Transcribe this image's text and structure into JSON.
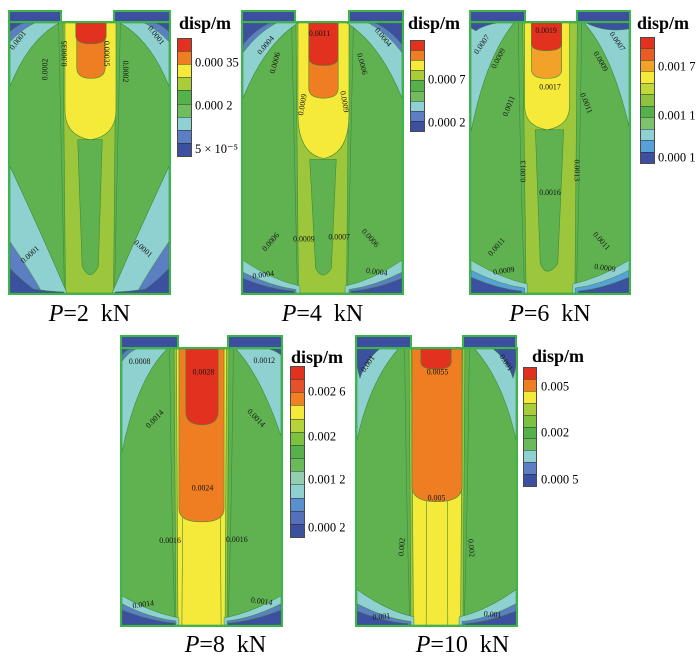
{
  "panels": [
    {
      "caption": {
        "var": "P",
        "rest": "=2 kN"
      },
      "colorbar": {
        "title": "disp/m",
        "colors": [
          "#e2311f",
          "#ef7d22",
          "#f5e93a",
          "#a9cd39",
          "#55b24a",
          "#6fbd5d",
          "#8fd0d0",
          "#5c7ec3",
          "#3d4f9f"
        ],
        "ticks": [
          {
            "text": "0.000 35",
            "pos": 21
          },
          {
            "text": "0.000 2",
            "pos": 57
          },
          {
            "text": "5 × 10⁻⁵",
            "pos": 93
          }
        ]
      },
      "contour_labels": [
        "0.0001",
        "0.0002",
        "0.00035",
        "0.00035",
        "0.0002",
        "0.0001",
        "0.0001",
        "0.0001"
      ]
    },
    {
      "caption": {
        "var": "P",
        "rest": "=4 kN"
      },
      "colorbar": {
        "title": "disp/m",
        "colors": [
          "#e2311f",
          "#ef7d22",
          "#f5e93a",
          "#a9cd39",
          "#55b24a",
          "#6fbd5d",
          "#8fd0d0",
          "#5c7ec3",
          "#3d4f9f"
        ],
        "ticks": [
          {
            "text": "0.000 7",
            "pos": 44
          },
          {
            "text": "0.000 2",
            "pos": 90
          }
        ]
      },
      "contour_labels": [
        "0.0004",
        "0.0006",
        "0.0011",
        "0.0009",
        "0.0009",
        "0.0006",
        "0.0004",
        "0.0006",
        "0.0009",
        "0.0007",
        "0.0006",
        "0.0004",
        "0.0004"
      ]
    },
    {
      "caption": {
        "var": "P",
        "rest": "=6 kN"
      },
      "colorbar": {
        "title": "disp/m",
        "colors": [
          "#e2311f",
          "#e95c25",
          "#f2a129",
          "#f5e93a",
          "#c0d83a",
          "#8ec23f",
          "#55b24a",
          "#7cc36b",
          "#8fd0d0",
          "#57a0d8",
          "#3d4f9f"
        ],
        "ticks": [
          {
            "text": "0.001 7",
            "pos": 24
          },
          {
            "text": "0.001 1",
            "pos": 62
          },
          {
            "text": "0.000 1",
            "pos": 95
          }
        ]
      },
      "contour_labels": [
        "0.0007",
        "0.0009",
        "0.0019",
        "0.0017",
        "0.0011",
        "0.0011",
        "0.0013",
        "0.0013",
        "0.0016",
        "0.0011",
        "0.0011",
        "0.0009",
        "0.0009",
        "0.0007",
        "0.0009"
      ]
    },
    {
      "caption": {
        "var": "P",
        "rest": "=8 kN"
      },
      "colorbar": {
        "title": "disp/m",
        "colors": [
          "#e2311f",
          "#e4512a",
          "#f08022",
          "#f5e93a",
          "#b5d43a",
          "#7cc23f",
          "#55b24a",
          "#69ba58",
          "#93cfae",
          "#8fd0d0",
          "#5b8fcc",
          "#5570bb",
          "#3d4f9f"
        ],
        "ticks": [
          {
            "text": "0.002 6",
            "pos": 15
          },
          {
            "text": "0.002",
            "pos": 41
          },
          {
            "text": "0.001 2",
            "pos": 66
          },
          {
            "text": "0.000 2",
            "pos": 94
          }
        ]
      },
      "contour_labels": [
        "0.0008",
        "0.0028",
        "0.0012",
        "0.0014",
        "0.0014",
        "0.0024",
        "0.0016",
        "0.0016",
        "0.0014",
        "0.0014"
      ]
    },
    {
      "caption": {
        "var": "P",
        "rest": "=10 kN"
      },
      "colorbar": {
        "title": "disp/m",
        "colors": [
          "#e2311f",
          "#ef7d22",
          "#f5e93a",
          "#a9cd39",
          "#7cc23f",
          "#55b24a",
          "#69ba58",
          "#8fd0d0",
          "#5c7ec3",
          "#3d4f9f"
        ],
        "ticks": [
          {
            "text": "0.005",
            "pos": 17
          },
          {
            "text": "0.002",
            "pos": 55
          },
          {
            "text": "0.000 5",
            "pos": 94
          }
        ]
      },
      "contour_labels": [
        "0.001",
        "0.0055",
        "0.001",
        "0.005",
        "0.002",
        "0.002",
        "0.001",
        "0.001"
      ]
    }
  ],
  "chart_data": [
    {
      "type": "heatmap",
      "subtype": "contour",
      "title": "P=2 kN",
      "legend_title": "disp/m",
      "load_kN": 2,
      "colorbar_tick_values": [
        0.00035,
        0.0002,
        5e-05
      ],
      "contour_levels": [
        0.0001,
        0.0002,
        0.00035
      ]
    },
    {
      "type": "heatmap",
      "subtype": "contour",
      "title": "P=4 kN",
      "legend_title": "disp/m",
      "load_kN": 4,
      "colorbar_tick_values": [
        0.0007,
        0.0002
      ],
      "contour_levels": [
        0.0004,
        0.0006,
        0.0007,
        0.0009,
        0.0011
      ]
    },
    {
      "type": "heatmap",
      "subtype": "contour",
      "title": "P=6 kN",
      "legend_title": "disp/m",
      "load_kN": 6,
      "colorbar_tick_values": [
        0.0017,
        0.0011,
        0.0001
      ],
      "contour_levels": [
        0.0007,
        0.0009,
        0.0011,
        0.0013,
        0.0016,
        0.0017,
        0.0019
      ]
    },
    {
      "type": "heatmap",
      "subtype": "contour",
      "title": "P=8 kN",
      "legend_title": "disp/m",
      "load_kN": 8,
      "colorbar_tick_values": [
        0.0026,
        0.002,
        0.0012,
        0.0002
      ],
      "contour_levels": [
        0.0008,
        0.0012,
        0.0014,
        0.0016,
        0.0024,
        0.0028
      ]
    },
    {
      "type": "heatmap",
      "subtype": "contour",
      "title": "P=10 kN",
      "legend_title": "disp/m",
      "load_kN": 10,
      "colorbar_tick_values": [
        0.005,
        0.002,
        0.0005
      ],
      "contour_levels": [
        0.001,
        0.002,
        0.005,
        0.0055
      ]
    }
  ]
}
